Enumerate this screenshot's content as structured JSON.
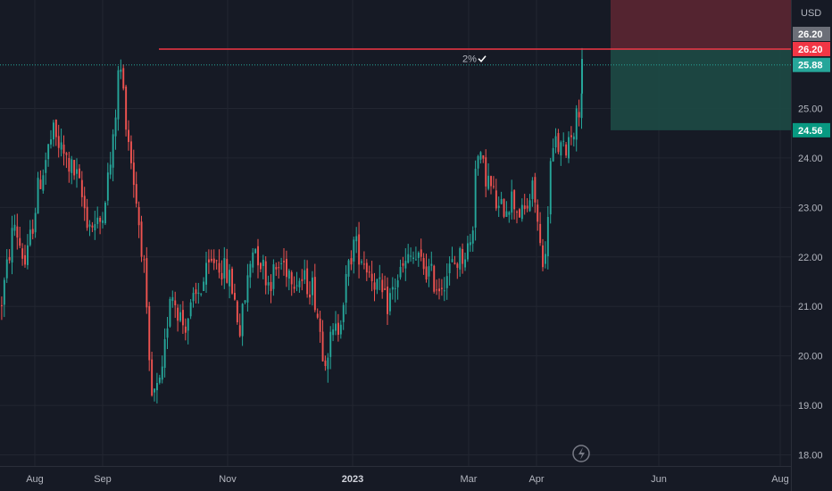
{
  "chart_data": {
    "type": "candlestick",
    "currency": "USD",
    "y_ticks": [
      18.0,
      19.0,
      20.0,
      21.0,
      22.0,
      23.0,
      24.0,
      25.0
    ],
    "x_ticks": [
      "Aug",
      "Sep",
      "Nov",
      "2023",
      "Mar",
      "Apr",
      "Jun",
      "Aug"
    ],
    "ylim": [
      17.9,
      26.9
    ],
    "grid": true,
    "colors": {
      "background": "#161a25",
      "grid": "#222631",
      "up": "#26a69a",
      "down": "#ef5350",
      "target_line": "#f23645",
      "target_zone": "#5b2632",
      "stop_zone": "#1d4a45",
      "last_price_line": "#26a69a",
      "tag_gray": "#6c6f78"
    },
    "trend_path": [
      [
        0,
        21.0
      ],
      [
        15,
        22.7
      ],
      [
        28,
        21.8
      ],
      [
        42,
        23.4
      ],
      [
        58,
        24.5
      ],
      [
        72,
        24.0
      ],
      [
        85,
        23.6
      ],
      [
        98,
        22.7
      ],
      [
        110,
        22.6
      ],
      [
        125,
        24.1
      ],
      [
        133,
        26.0
      ],
      [
        141,
        24.7
      ],
      [
        150,
        23.4
      ],
      [
        160,
        21.9
      ],
      [
        168,
        19.1
      ],
      [
        180,
        19.4
      ],
      [
        190,
        21.4
      ],
      [
        205,
        20.6
      ],
      [
        222,
        21.3
      ],
      [
        240,
        22.0
      ],
      [
        258,
        21.5
      ],
      [
        268,
        20.5
      ],
      [
        283,
        22.3
      ],
      [
        300,
        21.5
      ],
      [
        315,
        21.9
      ],
      [
        330,
        21.6
      ],
      [
        350,
        21.4
      ],
      [
        362,
        20.0
      ],
      [
        378,
        20.6
      ],
      [
        395,
        22.3
      ],
      [
        408,
        21.9
      ],
      [
        420,
        21.5
      ],
      [
        432,
        21.0
      ],
      [
        445,
        21.6
      ],
      [
        460,
        22.0
      ],
      [
        475,
        21.8
      ],
      [
        490,
        21.4
      ],
      [
        505,
        21.8
      ],
      [
        520,
        22.1
      ],
      [
        528,
        22.3
      ],
      [
        532,
        24.1
      ],
      [
        545,
        23.6
      ],
      [
        558,
        22.9
      ],
      [
        572,
        23.2
      ],
      [
        585,
        22.8
      ],
      [
        597,
        23.4
      ],
      [
        604,
        22.2
      ],
      [
        610,
        21.9
      ],
      [
        615,
        23.8
      ],
      [
        622,
        24.3
      ],
      [
        630,
        24.1
      ],
      [
        638,
        24.5
      ],
      [
        645,
        24.8
      ],
      [
        650,
        25.3
      ],
      [
        653,
        26.0
      ]
    ],
    "price_line": {
      "value": 26.2,
      "label": "26.20"
    },
    "last_price": {
      "value": 25.88,
      "label": "25.88"
    },
    "stop_level": {
      "value": 24.56,
      "label": "24.56"
    },
    "upper_tag": {
      "label": "26.20"
    },
    "target_zone": {
      "top": 26.9,
      "bottom": 26.2
    },
    "stop_zone": {
      "top": 26.2,
      "bottom": 24.56
    }
  },
  "alert": {
    "percent": "2%",
    "check_icon": "checkmark-icon"
  },
  "footer_icon": "lightning-icon"
}
